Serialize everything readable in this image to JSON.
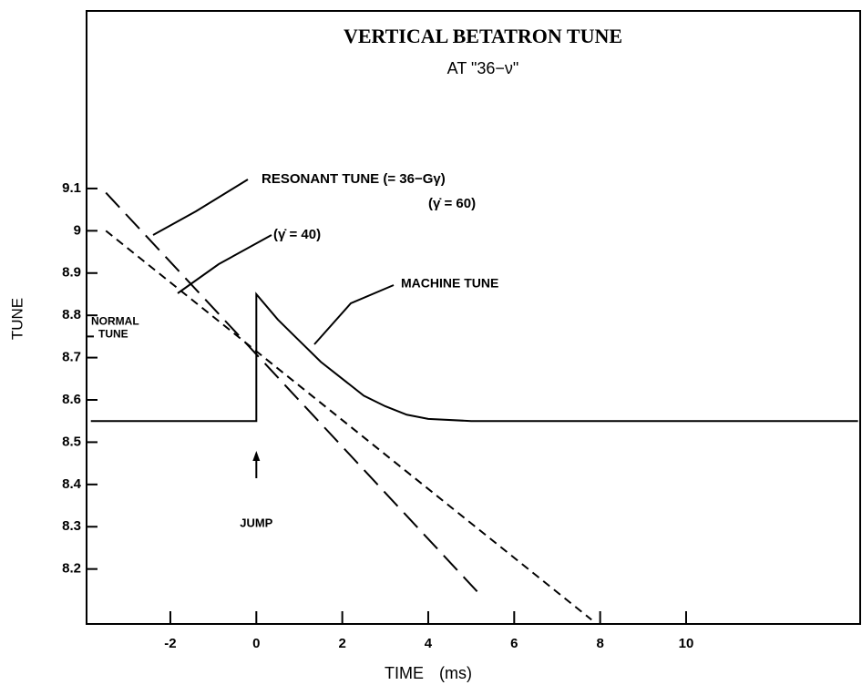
{
  "chart_data": {
    "type": "line",
    "title": "VERTICAL BETATRON TUNE",
    "subtitle": "AT \"36−ν\"",
    "x_label": "TIME (ms)",
    "y_label": "TUNE",
    "xlim": [
      -3.95,
      14.05
    ],
    "ylim": [
      8.07,
      9.52
    ],
    "xticks": [
      -2,
      0,
      2,
      4,
      6,
      8,
      10
    ],
    "yticks": [
      8.2,
      8.3,
      8.4,
      8.5,
      8.6,
      8.7,
      8.8,
      8.9,
      9.0,
      9.1
    ],
    "grid": false,
    "series": [
      {
        "name": "MACHINE TUNE",
        "color": "#000000",
        "style": "solid",
        "x": [
          -3.85,
          0,
          0,
          0.5,
          1,
          1.5,
          2,
          2.5,
          3,
          3.5,
          4,
          5,
          14
        ],
        "values": [
          8.55,
          8.55,
          8.85,
          8.79,
          8.74,
          8.69,
          8.65,
          8.61,
          8.585,
          8.565,
          8.555,
          8.55,
          8.55
        ]
      },
      {
        "name": "RESONANT TUNE (= 36−Gγ)",
        "color": "#000000",
        "style": "long-dash",
        "x": [
          -3.5,
          5.2
        ],
        "values": [
          9.09,
          8.14
        ]
      },
      {
        "name": "(γ̇ = 40)",
        "color": "#000000",
        "style": "short-dash",
        "x": [
          -3.5,
          7.8
        ],
        "values": [
          9.0,
          8.08
        ]
      }
    ],
    "annotations": [
      "(γ̇ = 60)"
    ],
    "normal_tune": {
      "label_lines": [
        "NORMAL",
        "TUNE"
      ],
      "value": 8.75
    },
    "jump": {
      "label": "JUMP",
      "x": 0
    }
  }
}
